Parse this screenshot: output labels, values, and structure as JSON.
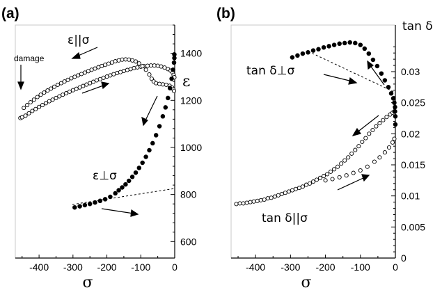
{
  "figure": {
    "panel_a_label": "(a)",
    "panel_b_label": "(b)"
  },
  "chart_data": [
    {
      "type": "scatter",
      "panel": "(a)",
      "xlabel": "σ",
      "ylabel": "ε",
      "xlim": [
        -470,
        0
      ],
      "ylim": [
        530,
        1520
      ],
      "x_ticks": [
        -400,
        -300,
        -200,
        -100,
        0
      ],
      "x_tick_labels": [
        "-400",
        "-300",
        "-200",
        "-100",
        "0"
      ],
      "y_ticks": [
        600,
        800,
        1000,
        1200,
        1400
      ],
      "y_tick_labels": [
        "600",
        "800",
        "1000",
        "1200",
        "1400"
      ],
      "y_axis_side": "right",
      "annotations": [
        "ε||σ",
        "ε⊥σ",
        "damage"
      ],
      "series": [
        {
          "name": "ε||σ",
          "marker": "open",
          "points": [
            [
              -455,
              1125
            ],
            [
              -450,
              1128
            ],
            [
              -440,
              1135
            ],
            [
              -430,
              1145
            ],
            [
              -420,
              1155
            ],
            [
              -410,
              1163
            ],
            [
              -400,
              1172
            ],
            [
              -390,
              1180
            ],
            [
              -380,
              1188
            ],
            [
              -370,
              1196
            ],
            [
              -360,
              1203
            ],
            [
              -350,
              1210
            ],
            [
              -340,
              1217
            ],
            [
              -330,
              1224
            ],
            [
              -320,
              1230
            ],
            [
              -310,
              1237
            ],
            [
              -300,
              1243
            ],
            [
              -290,
              1249
            ],
            [
              -280,
              1255
            ],
            [
              -270,
              1261
            ],
            [
              -260,
              1267
            ],
            [
              -250,
              1273
            ],
            [
              -240,
              1279
            ],
            [
              -230,
              1285
            ],
            [
              -220,
              1290
            ],
            [
              -210,
              1296
            ],
            [
              -200,
              1301
            ],
            [
              -190,
              1306
            ],
            [
              -180,
              1311
            ],
            [
              -170,
              1316
            ],
            [
              -160,
              1320
            ],
            [
              -150,
              1325
            ],
            [
              -140,
              1329
            ],
            [
              -130,
              1333
            ],
            [
              -120,
              1337
            ],
            [
              -110,
              1340
            ],
            [
              -100,
              1343
            ],
            [
              -90,
              1345
            ],
            [
              -80,
              1347
            ],
            [
              -70,
              1348
            ],
            [
              -60,
              1348
            ],
            [
              -50,
              1347
            ],
            [
              -40,
              1344
            ],
            [
              -30,
              1339
            ],
            [
              -20,
              1333
            ],
            [
              -12,
              1326
            ],
            [
              -6,
              1318
            ],
            [
              -3,
              1308
            ],
            [
              -1,
              1298
            ],
            [
              -445,
              1168
            ],
            [
              -435,
              1180
            ],
            [
              -425,
              1192
            ],
            [
              -415,
              1203
            ],
            [
              -405,
              1214
            ],
            [
              -395,
              1224
            ],
            [
              -385,
              1233
            ],
            [
              -375,
              1242
            ],
            [
              -365,
              1250
            ],
            [
              -355,
              1258
            ],
            [
              -345,
              1266
            ],
            [
              -335,
              1273
            ],
            [
              -325,
              1280
            ],
            [
              -315,
              1287
            ],
            [
              -305,
              1294
            ],
            [
              -295,
              1300
            ],
            [
              -285,
              1306
            ],
            [
              -275,
              1312
            ],
            [
              -265,
              1318
            ],
            [
              -255,
              1324
            ],
            [
              -245,
              1330
            ],
            [
              -235,
              1335
            ],
            [
              -225,
              1341
            ],
            [
              -215,
              1346
            ],
            [
              -205,
              1351
            ],
            [
              -195,
              1356
            ],
            [
              -185,
              1361
            ],
            [
              -175,
              1366
            ],
            [
              -165,
              1370
            ],
            [
              -155,
              1373
            ],
            [
              -145,
              1374
            ],
            [
              -135,
              1373
            ],
            [
              -125,
              1370
            ],
            [
              -115,
              1365
            ],
            [
              -105,
              1357
            ],
            [
              -95,
              1345
            ],
            [
              -85,
              1330
            ],
            [
              -75,
              1310
            ],
            [
              -68,
              1292
            ],
            [
              -62,
              1280
            ],
            [
              -55,
              1273
            ],
            [
              -45,
              1270
            ],
            [
              -35,
              1268
            ],
            [
              -25,
              1266
            ],
            [
              -15,
              1262
            ],
            [
              -8,
              1255
            ],
            [
              -4,
              1247
            ],
            [
              -2,
              1240
            ]
          ]
        },
        {
          "name": "ε⊥σ",
          "marker": "filled",
          "points": [
            [
              -295,
              745
            ],
            [
              -280,
              750
            ],
            [
              -265,
              755
            ],
            [
              -250,
              760
            ],
            [
              -235,
              766
            ],
            [
              -220,
              773
            ],
            [
              -205,
              780
            ],
            [
              -190,
              790
            ],
            [
              -175,
              805
            ],
            [
              -165,
              818
            ],
            [
              -155,
              830
            ],
            [
              -145,
              843
            ],
            [
              -135,
              858
            ],
            [
              -125,
              875
            ],
            [
              -115,
              893
            ],
            [
              -105,
              913
            ],
            [
              -95,
              935
            ],
            [
              -85,
              960
            ],
            [
              -75,
              988
            ],
            [
              -65,
              1018
            ],
            [
              -55,
              1052
            ],
            [
              -45,
              1090
            ],
            [
              -35,
              1132
            ],
            [
              -27,
              1170
            ],
            [
              -20,
              1210
            ],
            [
              -14,
              1252
            ],
            [
              -9,
              1292
            ],
            [
              -5,
              1330
            ],
            [
              -2,
              1360
            ],
            [
              -1,
              1380
            ],
            [
              -1,
              1395
            ]
          ]
        }
      ]
    },
    {
      "type": "scatter",
      "panel": "(b)",
      "xlabel": "σ",
      "ylabel": "tan δ",
      "xlim": [
        -470,
        0
      ],
      "ylim": [
        0,
        0.0375
      ],
      "x_ticks": [
        -400,
        -300,
        -200,
        -100,
        0
      ],
      "x_tick_labels": [
        "-400",
        "-300",
        "-200",
        "-100",
        "0"
      ],
      "y_ticks": [
        0,
        0.005,
        0.01,
        0.015,
        0.02,
        0.025,
        0.03
      ],
      "y_tick_labels": [
        "0",
        "0.005",
        "0.01",
        "0.015",
        "0.02",
        "0.025",
        "0.03"
      ],
      "y_axis_side": "right",
      "annotations": [
        "tan δ⊥σ",
        "tan δ||σ"
      ],
      "series": [
        {
          "name": "tan δ||σ",
          "marker": "open",
          "points": [
            [
              -455,
              0.0087
            ],
            [
              -445,
              0.0088
            ],
            [
              -435,
              0.0088
            ],
            [
              -425,
              0.0089
            ],
            [
              -415,
              0.009
            ],
            [
              -405,
              0.0091
            ],
            [
              -395,
              0.0092
            ],
            [
              -385,
              0.0093
            ],
            [
              -375,
              0.0094
            ],
            [
              -365,
              0.0096
            ],
            [
              -355,
              0.0097
            ],
            [
              -345,
              0.0099
            ],
            [
              -335,
              0.0101
            ],
            [
              -325,
              0.0103
            ],
            [
              -315,
              0.0105
            ],
            [
              -305,
              0.0107
            ],
            [
              -295,
              0.0109
            ],
            [
              -285,
              0.0111
            ],
            [
              -275,
              0.0113
            ],
            [
              -265,
              0.0115
            ],
            [
              -255,
              0.0118
            ],
            [
              -245,
              0.012
            ],
            [
              -235,
              0.0123
            ],
            [
              -225,
              0.0126
            ],
            [
              -215,
              0.0129
            ],
            [
              -205,
              0.0132
            ],
            [
              -195,
              0.0135
            ],
            [
              -185,
              0.0139
            ],
            [
              -175,
              0.0143
            ],
            [
              -165,
              0.0147
            ],
            [
              -155,
              0.0152
            ],
            [
              -145,
              0.0157
            ],
            [
              -135,
              0.0162
            ],
            [
              -125,
              0.0168
            ],
            [
              -115,
              0.0174
            ],
            [
              -105,
              0.018
            ],
            [
              -95,
              0.0187
            ],
            [
              -85,
              0.0193
            ],
            [
              -75,
              0.02
            ],
            [
              -65,
              0.0206
            ],
            [
              -55,
              0.0212
            ],
            [
              -45,
              0.0217
            ],
            [
              -35,
              0.0222
            ],
            [
              -25,
              0.0227
            ],
            [
              -15,
              0.0231
            ],
            [
              -8,
              0.0234
            ],
            [
              -3,
              0.0236
            ],
            [
              -200,
              0.0125
            ],
            [
              -180,
              0.0127
            ],
            [
              -160,
              0.013
            ],
            [
              -140,
              0.0133
            ],
            [
              -120,
              0.0137
            ],
            [
              -100,
              0.0141
            ],
            [
              -80,
              0.0147
            ],
            [
              -60,
              0.0155
            ],
            [
              -45,
              0.0162
            ],
            [
              -30,
              0.017
            ],
            [
              -18,
              0.0178
            ],
            [
              -8,
              0.0186
            ],
            [
              -3,
              0.0192
            ]
          ]
        },
        {
          "name": "tan δ⊥σ",
          "marker": "filled",
          "points": [
            [
              -295,
              0.0323
            ],
            [
              -280,
              0.0326
            ],
            [
              -265,
              0.0329
            ],
            [
              -250,
              0.0331
            ],
            [
              -235,
              0.0334
            ],
            [
              -220,
              0.0336
            ],
            [
              -205,
              0.0339
            ],
            [
              -190,
              0.0341
            ],
            [
              -175,
              0.0343
            ],
            [
              -160,
              0.0345
            ],
            [
              -145,
              0.0346
            ],
            [
              -130,
              0.0347
            ],
            [
              -115,
              0.0346
            ],
            [
              -100,
              0.0343
            ],
            [
              -88,
              0.0337
            ],
            [
              -76,
              0.0329
            ],
            [
              -64,
              0.0319
            ],
            [
              -52,
              0.0309
            ],
            [
              -40,
              0.0297
            ],
            [
              -30,
              0.0286
            ],
            [
              -20,
              0.0275
            ],
            [
              -12,
              0.0265
            ],
            [
              -6,
              0.0257
            ],
            [
              -3,
              0.025
            ],
            [
              -1,
              0.0243
            ],
            [
              -1,
              0.0236
            ],
            [
              0,
              0.0228
            ],
            [
              0,
              0.0215
            ]
          ]
        }
      ]
    }
  ]
}
